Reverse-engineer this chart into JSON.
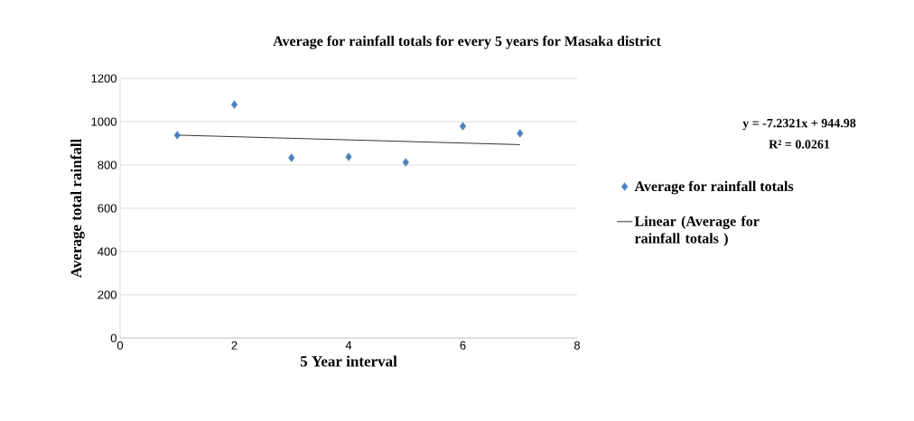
{
  "chart_data": {
    "type": "scatter",
    "title": "Average for rainfall  totals  for every 5 years for Masaka district",
    "xlabel": "5 Year interval",
    "ylabel": "Average total rainfall",
    "annotations": [
      "y = -7.2321x + 944.98",
      "R² = 0.0261"
    ],
    "x": [
      1,
      2,
      3,
      4,
      5,
      6,
      7
    ],
    "series": [
      {
        "name": "Average for rainfall totals",
        "color": "#4f81bd",
        "marker": "diamond",
        "values": [
          938,
          1079,
          833,
          837,
          812,
          979,
          946
        ]
      },
      {
        "name": "Linear (Average for rainfall totals )",
        "type": "line",
        "color": "#000000",
        "marker": "none",
        "line_style": "solid",
        "x": [
          1,
          7
        ],
        "values": [
          938,
          894
        ]
      }
    ],
    "xlim": [
      0,
      8
    ],
    "xticks": [
      0,
      2,
      4,
      6,
      8
    ],
    "ylim": [
      0,
      1200
    ],
    "yticks": [
      0,
      200,
      400,
      600,
      800,
      1000,
      1200
    ],
    "grid": "y",
    "legend": "right"
  }
}
